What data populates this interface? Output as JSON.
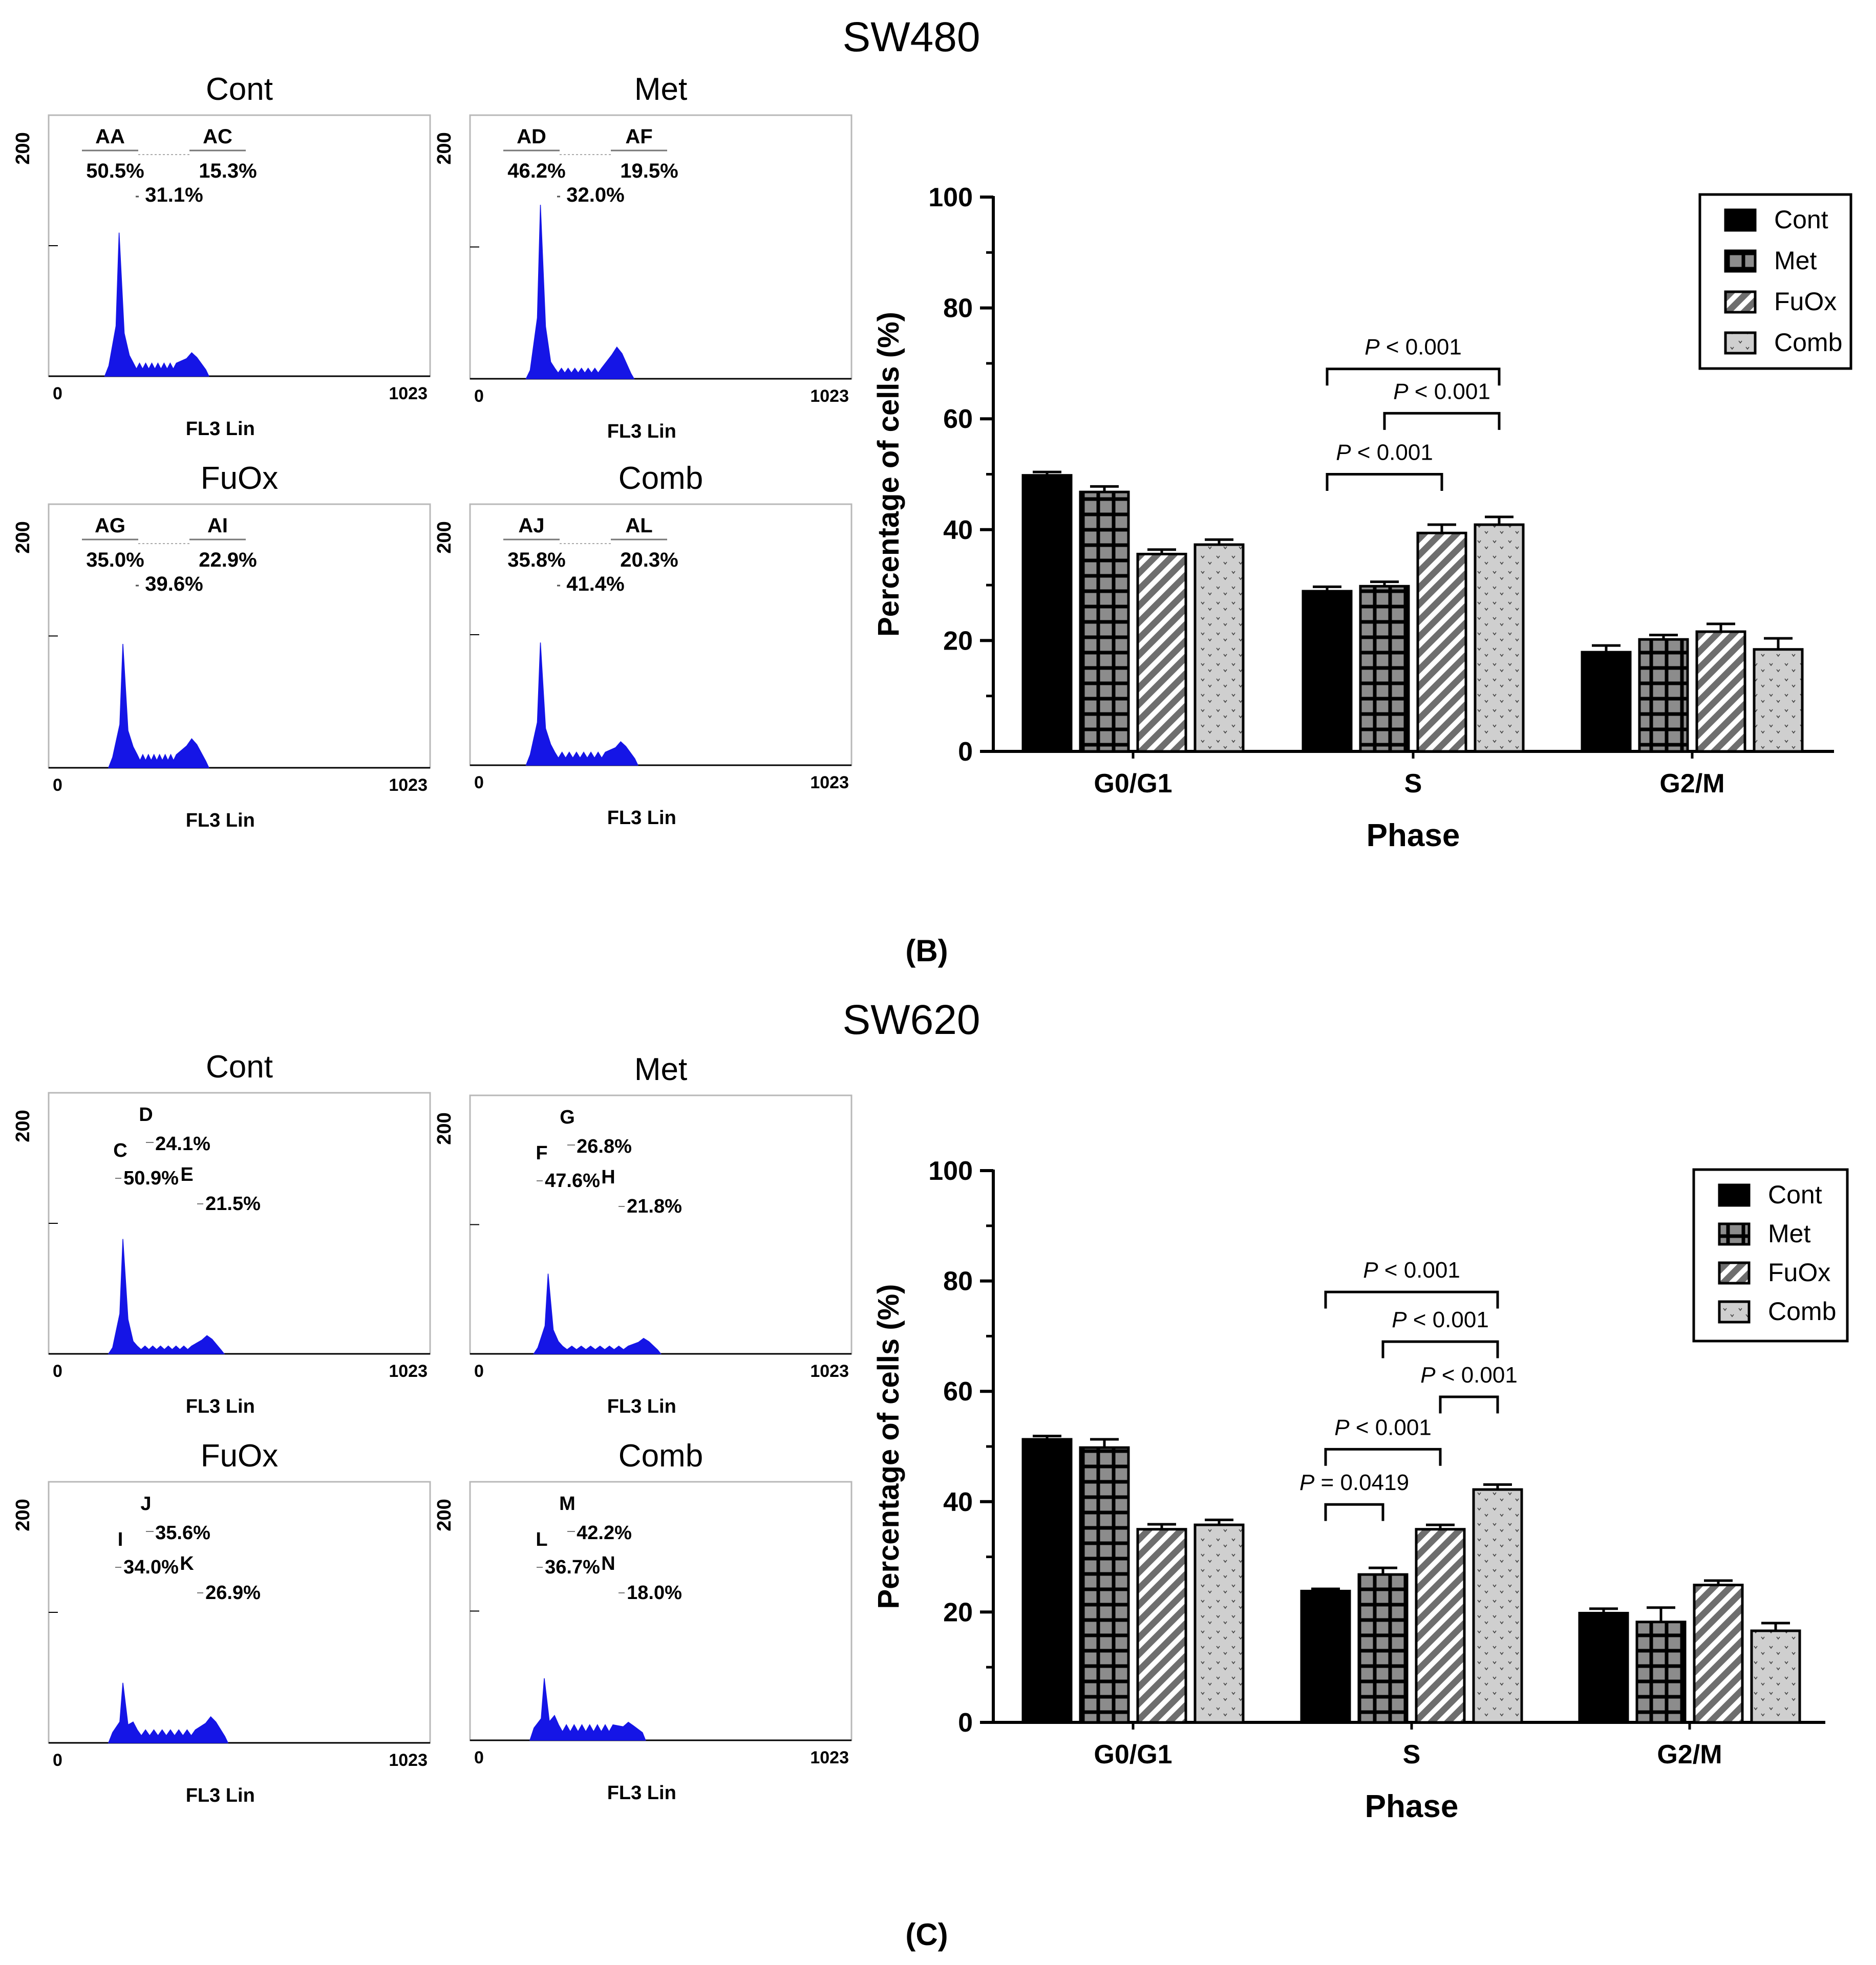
{
  "colors": {
    "histogram": "#1515e6",
    "bar_cont": "#000000",
    "bar_met": "#8c8c8c",
    "bar_fuox": "#6e6e6e",
    "bar_comb": "#cfcfcf"
  },
  "chart_data": [
    {
      "type": "histogram",
      "title": "SW480",
      "xlabel": "FL3 Lin",
      "x_ticks": [
        "0",
        "1023"
      ],
      "y_tick": "200",
      "panels": [
        {
          "title": "Cont",
          "gates": [
            "AA",
            "AC"
          ],
          "top": [
            "50.5%",
            "15.3%"
          ],
          "mid": "31.1%",
          "g1_peak": 0.55,
          "g2_peak": 0.09,
          "g1_pos": 0.19,
          "s_level": 0.05,
          "end": 0.42
        },
        {
          "title": "Met",
          "gates": [
            "AD",
            "AF"
          ],
          "top": [
            "46.2%",
            "19.5%"
          ],
          "mid": "32.0%",
          "g1_peak": 0.66,
          "g2_peak": 0.12,
          "g1_pos": 0.19,
          "s_level": 0.04,
          "end": 0.43
        },
        {
          "title": "FuOx",
          "gates": [
            "AG",
            "AI"
          ],
          "top": [
            "35.0%",
            "22.9%"
          ],
          "mid": "39.6%",
          "g1_peak": 0.47,
          "g2_peak": 0.11,
          "g1_pos": 0.2,
          "s_level": 0.05,
          "end": 0.42
        },
        {
          "title": "Comb",
          "gates": [
            "AJ",
            "AL"
          ],
          "top": [
            "35.8%",
            "20.3%"
          ],
          "mid": "41.4%",
          "g1_peak": 0.47,
          "g2_peak": 0.09,
          "g1_pos": 0.19,
          "s_level": 0.05,
          "end": 0.44
        }
      ]
    },
    {
      "type": "bar",
      "title": "",
      "caption": "(B)",
      "categories": [
        "G0/G1",
        "S",
        "G2/M"
      ],
      "xlabel": "Phase",
      "ylabel": "Percentage of cells (%)",
      "ylim": [
        0,
        100
      ],
      "yticks": [
        0,
        20,
        40,
        60,
        80,
        100
      ],
      "series": [
        {
          "name": "Cont",
          "values": [
            49.8,
            28.9,
            17.9
          ],
          "errors": [
            0.6,
            0.8,
            1.2
          ]
        },
        {
          "name": "Met",
          "values": [
            46.8,
            29.8,
            20.2
          ],
          "errors": [
            1.0,
            0.8,
            0.8
          ]
        },
        {
          "name": "FuOx",
          "values": [
            35.6,
            39.4,
            21.6
          ],
          "errors": [
            0.8,
            1.5,
            1.4
          ]
        },
        {
          "name": "Comb",
          "values": [
            37.3,
            40.9,
            18.4
          ],
          "errors": [
            0.9,
            1.4,
            2.0
          ]
        }
      ],
      "significance": [
        {
          "label": "P < 0.001",
          "p_word": "P",
          "p_rest": " < 0.001",
          "group": 1,
          "from": 0,
          "to": 3,
          "y": 69,
          "ext": 3
        },
        {
          "label": "P < 0.001",
          "p_word": "P",
          "p_rest": " < 0.001",
          "group": 1,
          "from": 1,
          "to": 3,
          "y": 61,
          "ext": 3
        },
        {
          "label": "P < 0.001",
          "p_word": "P",
          "p_rest": " < 0.001",
          "group": 1,
          "from": 0,
          "to": 2,
          "y": 50,
          "ext": 3
        }
      ]
    },
    {
      "type": "histogram",
      "title": "SW620",
      "xlabel": "FL3 Lin",
      "x_ticks": [
        "0",
        "1023"
      ],
      "y_tick": "200",
      "panels": [
        {
          "title": "Cont",
          "gates": [
            "C",
            "D",
            "E"
          ],
          "values": [
            "50.9%",
            "24.1%",
            "21.5%"
          ],
          "g1_peak": 0.44,
          "g2_peak": 0.07,
          "g1_pos": 0.2,
          "s_level": 0.03,
          "end": 0.46
        },
        {
          "title": "Met",
          "gates": [
            "F",
            "G",
            "H"
          ],
          "values": [
            "47.6%",
            "26.8%",
            "21.8%"
          ],
          "g1_peak": 0.31,
          "g2_peak": 0.06,
          "g1_pos": 0.21,
          "s_level": 0.03,
          "end": 0.5
        },
        {
          "title": "FuOx",
          "gates": [
            "I",
            "J",
            "K"
          ],
          "values": [
            "34.0%",
            "35.6%",
            "26.9%"
          ],
          "g1_peak": 0.23,
          "g2_peak": 0.1,
          "g1_pos": 0.2,
          "s_level": 0.05,
          "end": 0.47
        },
        {
          "title": "Comb",
          "gates": [
            "L",
            "M",
            "N"
          ],
          "values": [
            "36.7%",
            "42.2%",
            "18.0%"
          ],
          "g1_peak": 0.24,
          "g2_peak": 0.07,
          "g1_pos": 0.2,
          "s_level": 0.06,
          "end": 0.46
        }
      ]
    },
    {
      "type": "bar",
      "title": "",
      "caption": "(C)",
      "categories": [
        "G0/G1",
        "S",
        "G2/M"
      ],
      "xlabel": "Phase",
      "ylabel": "Percentage of cells (%)",
      "ylim": [
        0,
        100
      ],
      "yticks": [
        0,
        20,
        40,
        60,
        80,
        100
      ],
      "series": [
        {
          "name": "Cont",
          "values": [
            51.3,
            23.8,
            19.8
          ],
          "errors": [
            0.6,
            0.4,
            0.8
          ]
        },
        {
          "name": "Met",
          "values": [
            49.8,
            26.8,
            18.2
          ],
          "errors": [
            1.5,
            1.2,
            2.6
          ]
        },
        {
          "name": "FuOx",
          "values": [
            35.0,
            35.0,
            24.9
          ],
          "errors": [
            0.9,
            0.8,
            0.8
          ]
        },
        {
          "name": "Comb",
          "values": [
            35.8,
            42.2,
            16.6
          ],
          "errors": [
            0.9,
            0.9,
            1.4
          ]
        }
      ],
      "significance": [
        {
          "label": "P < 0.001",
          "p_word": "P",
          "p_rest": " < 0.001",
          "group": 1,
          "from": 0,
          "to": 3,
          "y": 78,
          "ext": 3
        },
        {
          "label": "P < 0.001",
          "p_word": "P",
          "p_rest": " < 0.001",
          "group": 1,
          "from": 1,
          "to": 3,
          "y": 69,
          "ext": 3
        },
        {
          "label": "P < 0.001",
          "p_word": "P",
          "p_rest": " < 0.001",
          "group": 1,
          "from": 2,
          "to": 3,
          "y": 59,
          "ext": 3
        },
        {
          "label": "P < 0.001",
          "p_word": "P",
          "p_rest": " < 0.001",
          "group": 1,
          "from": 0,
          "to": 2,
          "y": 49.5,
          "ext": 3
        },
        {
          "label": "P = 0.0419",
          "p_word": "P",
          "p_rest": " = 0.0419",
          "group": 1,
          "from": 0,
          "to": 1,
          "y": 39.5,
          "ext": 3
        }
      ]
    }
  ]
}
